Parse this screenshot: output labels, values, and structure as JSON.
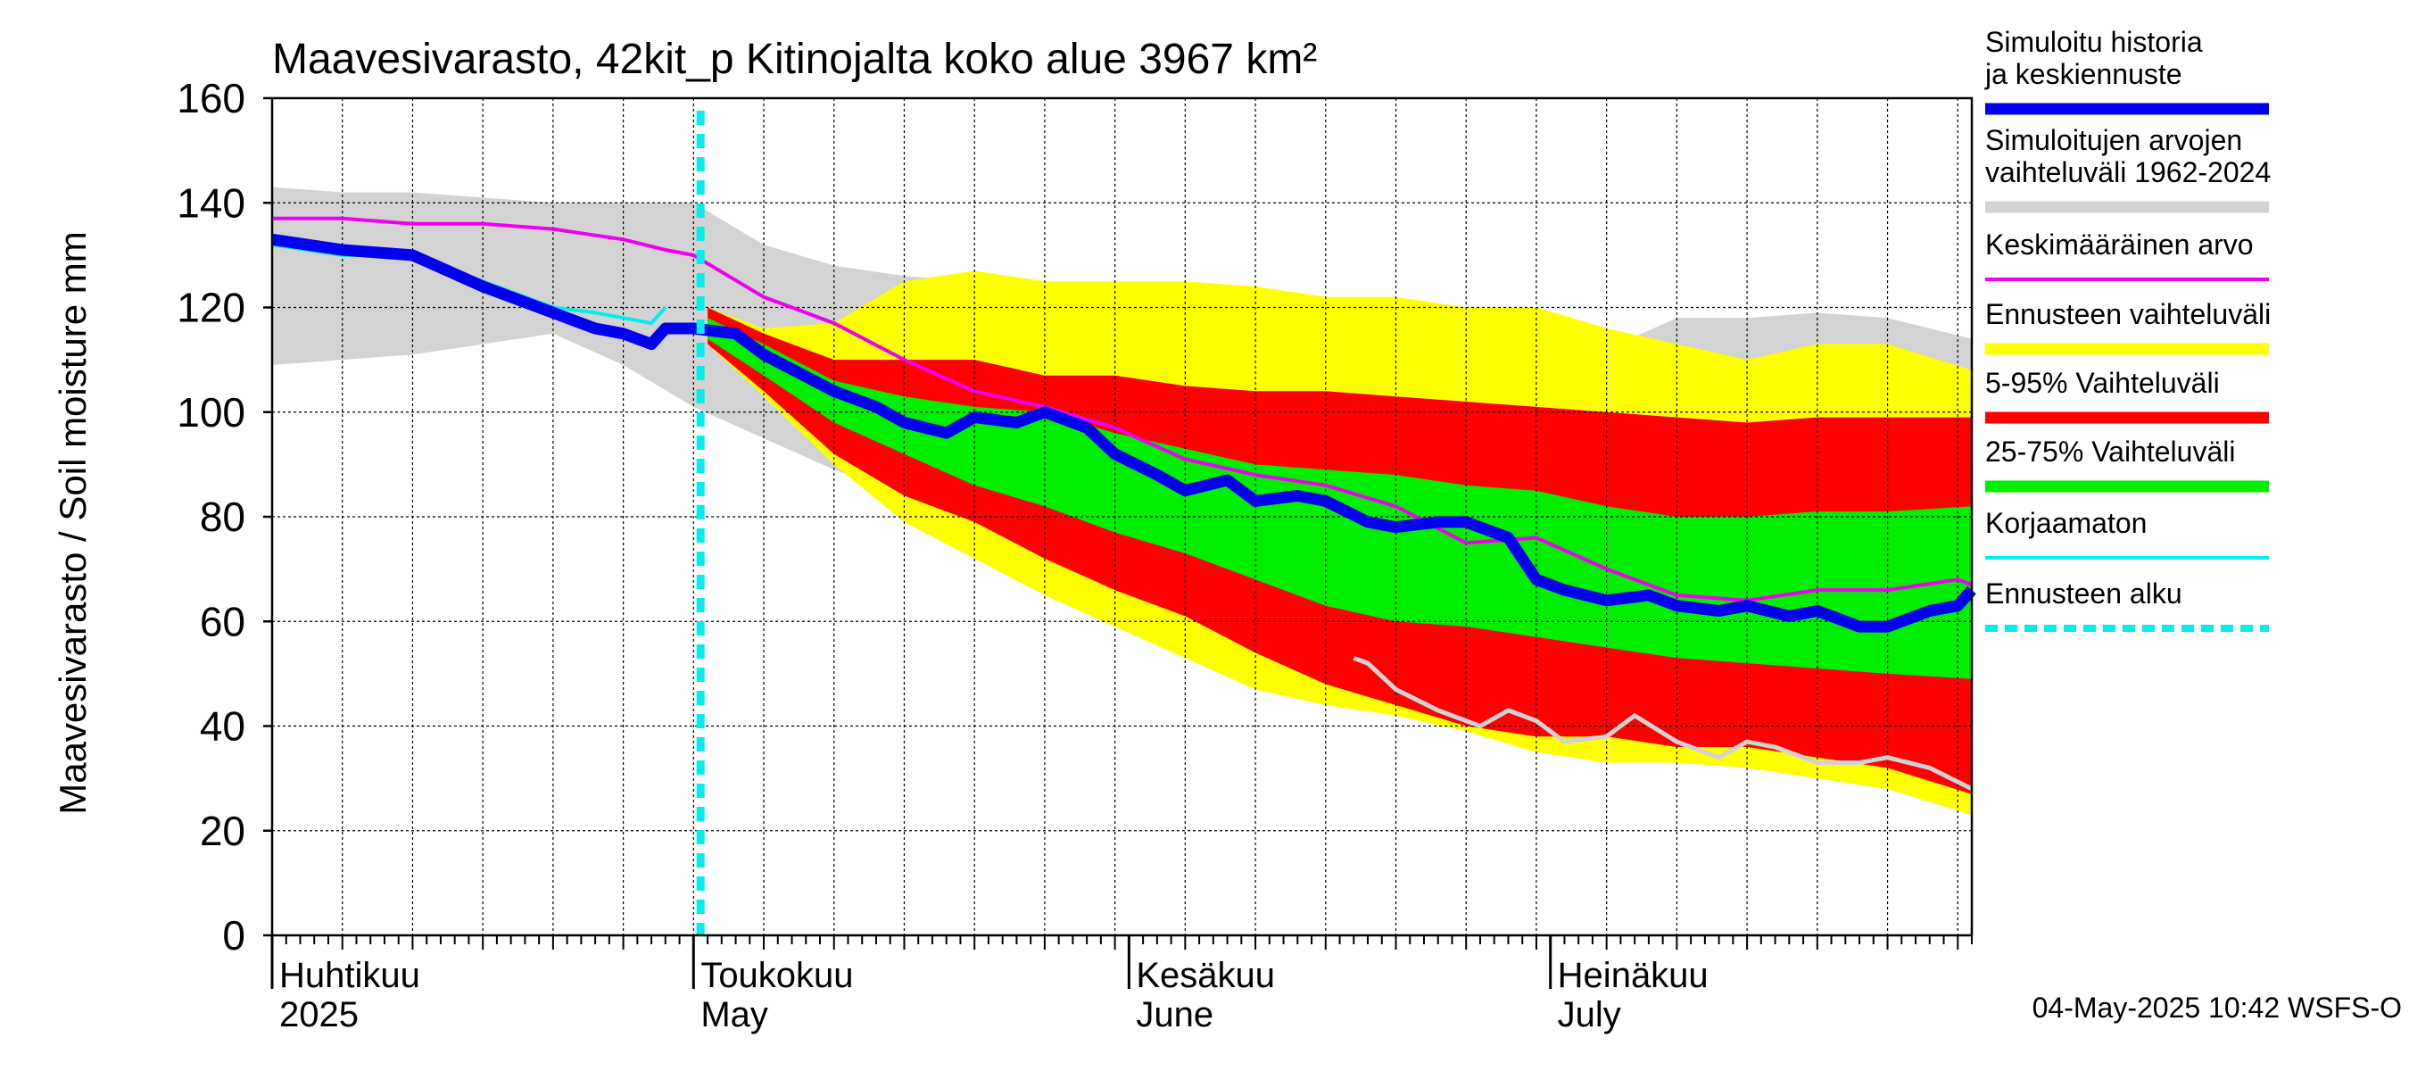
{
  "chart_data": {
    "type": "area",
    "title": "Maavesivarasto, 42kit_p Kitinojalta koko alue 3967 km²",
    "ylabel": "Maavesivarasto / Soil moisture   mm",
    "ylim": [
      0,
      160
    ],
    "yticks": [
      0,
      20,
      40,
      60,
      80,
      100,
      120,
      140,
      160
    ],
    "xlim_day": [
      0,
      121
    ],
    "month_labels": [
      {
        "fi": "Huhtikuu",
        "en": "2025",
        "day": 0
      },
      {
        "fi": "Toukokuu",
        "en": "May",
        "day": 30
      },
      {
        "fi": "Kesäkuu",
        "en": "June",
        "day": 61
      },
      {
        "fi": "Heinäkuu",
        "en": "July",
        "day": 91
      }
    ],
    "forecast_start_day": 30.5,
    "timestamp": "04-May-2025 10:42 WSFS-O",
    "legend": [
      {
        "label": "Simuloitu historia ja keskiennuste",
        "color": "#0000ee",
        "style": "thick"
      },
      {
        "label": "Simuloitujen arvojen vaihteluväli 1962-2024",
        "color": "#d3d3d3",
        "style": "thick"
      },
      {
        "label": "Keskimääräinen arvo",
        "color": "#ee00ee",
        "style": "thin"
      },
      {
        "label": "Ennusteen vaihteluväli",
        "color": "#ffff00",
        "style": "thick"
      },
      {
        "label": "5-95% Vaihteluväli",
        "color": "#ff0000",
        "style": "thick"
      },
      {
        "label": "25-75% Vaihteluväli",
        "color": "#00ee00",
        "style": "thick"
      },
      {
        "label": "Korjaamaton",
        "color": "#00eeee",
        "style": "thin"
      },
      {
        "label": "Ennusteen alku",
        "color": "#00eeee",
        "style": "dashed"
      }
    ],
    "series": {
      "history_range": {
        "days": [
          0,
          5,
          10,
          15,
          20,
          25,
          30,
          35,
          40,
          45,
          50,
          55,
          60,
          65,
          70,
          75,
          80,
          85,
          90,
          95,
          100,
          105,
          110,
          115,
          121
        ],
        "upper": [
          143,
          142,
          142,
          141,
          140,
          140,
          140,
          132,
          128,
          126,
          125,
          124,
          122,
          122,
          121,
          119,
          118,
          116,
          115,
          112,
          118,
          118,
          119,
          118,
          114
        ],
        "lower": [
          109,
          110,
          111,
          113,
          115,
          109,
          101,
          95,
          89,
          84,
          77,
          71,
          63,
          57,
          52,
          48,
          45,
          41,
          36,
          35,
          34,
          32,
          30,
          28,
          23
        ]
      },
      "forecast_range": {
        "days": [
          31,
          35,
          40,
          45,
          50,
          55,
          60,
          65,
          70,
          75,
          80,
          85,
          90,
          95,
          100,
          105,
          110,
          115,
          121
        ],
        "upper": [
          120,
          116,
          117,
          125,
          127,
          125,
          125,
          125,
          124,
          122,
          122,
          120,
          120,
          116,
          113,
          110,
          113,
          113,
          108
        ],
        "lower": [
          113,
          103,
          90,
          79,
          72,
          65,
          59,
          53,
          47,
          44,
          42,
          39,
          35,
          33,
          33,
          32,
          30,
          28,
          23
        ]
      },
      "p5_95": {
        "days": [
          31,
          35,
          40,
          45,
          50,
          55,
          60,
          65,
          70,
          75,
          80,
          85,
          90,
          95,
          100,
          105,
          110,
          115,
          121
        ],
        "upper": [
          120,
          115,
          110,
          110,
          110,
          107,
          107,
          105,
          104,
          104,
          103,
          102,
          101,
          100,
          99,
          98,
          99,
          99,
          99
        ],
        "lower": [
          113,
          104,
          92,
          84,
          79,
          72,
          66,
          61,
          54,
          48,
          44,
          40,
          38,
          38,
          36,
          36,
          34,
          32,
          27
        ]
      },
      "p25_75": {
        "days": [
          31,
          35,
          40,
          45,
          50,
          55,
          60,
          65,
          70,
          75,
          80,
          85,
          90,
          95,
          100,
          105,
          110,
          115,
          121
        ],
        "upper": [
          118,
          113,
          106,
          103,
          101,
          100,
          96,
          93,
          90,
          89,
          88,
          86,
          85,
          82,
          80,
          80,
          81,
          81,
          82
        ],
        "lower": [
          114,
          107,
          98,
          92,
          86,
          82,
          77,
          73,
          68,
          63,
          60,
          59,
          57,
          55,
          53,
          52,
          51,
          50,
          49
        ]
      },
      "mean": {
        "days": [
          0,
          5,
          10,
          15,
          20,
          25,
          28,
          30,
          35,
          40,
          45,
          50,
          55,
          60,
          65,
          70,
          75,
          80,
          85,
          90,
          95,
          100,
          105,
          110,
          115,
          120,
          121
        ],
        "values": [
          137,
          137,
          136,
          136,
          135,
          133,
          131,
          130,
          122,
          117,
          110,
          104,
          101,
          97,
          91,
          88,
          86,
          82,
          75,
          76,
          70,
          65,
          64,
          66,
          66,
          68,
          67
        ]
      },
      "uncorrected": {
        "days": [
          0,
          5,
          10,
          12,
          15,
          20,
          23,
          25,
          27,
          28
        ],
        "values": [
          132,
          130,
          130,
          128,
          125,
          120,
          119,
          118,
          117,
          120
        ]
      },
      "median": {
        "days": [
          0,
          5,
          10,
          15,
          20,
          23,
          25,
          27,
          28,
          30,
          33,
          35,
          40,
          43,
          45,
          48,
          50,
          53,
          55,
          58,
          60,
          63,
          65,
          68,
          70,
          73,
          75,
          78,
          80,
          83,
          85,
          88,
          90,
          92,
          95,
          98,
          100,
          103,
          105,
          108,
          110,
          113,
          115,
          118,
          120,
          121
        ],
        "values": [
          133,
          131,
          130,
          124,
          119,
          116,
          115,
          113,
          116,
          116,
          115,
          111,
          104,
          101,
          98,
          96,
          99,
          98,
          100,
          97,
          92,
          88,
          85,
          87,
          83,
          84,
          83,
          79,
          78,
          79,
          79,
          76,
          68,
          66,
          64,
          65,
          63,
          62,
          63,
          61,
          62,
          59,
          59,
          62,
          63,
          66
        ]
      },
      "min_line": {
        "days": [
          77,
          78,
          80,
          83,
          86,
          88,
          90,
          92,
          95,
          97,
          100,
          103,
          105,
          107,
          110,
          113,
          115,
          118,
          121
        ],
        "values": [
          53,
          52,
          47,
          43,
          40,
          43,
          41,
          37,
          38,
          42,
          37,
          34,
          37,
          36,
          33,
          33,
          34,
          32,
          28
        ]
      }
    }
  }
}
